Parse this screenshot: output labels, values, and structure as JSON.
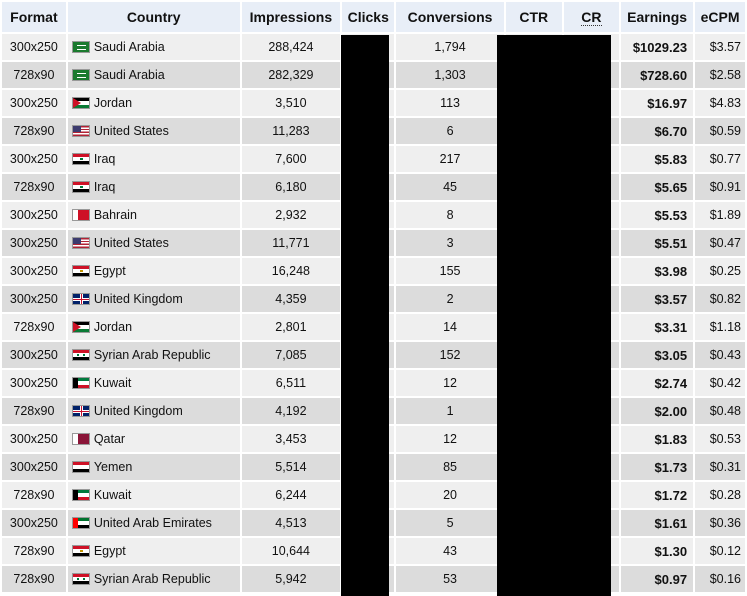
{
  "headers": {
    "format": "Format",
    "country": "Country",
    "impressions": "Impressions",
    "clicks": "Clicks",
    "conversions": "Conversions",
    "ctr": "CTR",
    "cr": "CR",
    "earnings": "Earnings",
    "ecpm": "eCPM"
  },
  "rows": [
    {
      "format": "300x250",
      "country": "Saudi Arabia",
      "flag": "saudi-arabia-flag-icon",
      "impressions": "288,424",
      "conversions": "1,794",
      "earnings": "$1029.23",
      "ecpm": "$3.57"
    },
    {
      "format": "728x90",
      "country": "Saudi Arabia",
      "flag": "saudi-arabia-flag-icon",
      "impressions": "282,329",
      "conversions": "1,303",
      "earnings": "$728.60",
      "ecpm": "$2.58"
    },
    {
      "format": "300x250",
      "country": "Jordan",
      "flag": "jordan-flag-icon",
      "impressions": "3,510",
      "conversions": "113",
      "earnings": "$16.97",
      "ecpm": "$4.83"
    },
    {
      "format": "728x90",
      "country": "United States",
      "flag": "united-states-flag-icon",
      "impressions": "11,283",
      "conversions": "6",
      "earnings": "$6.70",
      "ecpm": "$0.59"
    },
    {
      "format": "300x250",
      "country": "Iraq",
      "flag": "iraq-flag-icon",
      "impressions": "7,600",
      "conversions": "217",
      "earnings": "$5.83",
      "ecpm": "$0.77"
    },
    {
      "format": "728x90",
      "country": "Iraq",
      "flag": "iraq-flag-icon",
      "impressions": "6,180",
      "conversions": "45",
      "earnings": "$5.65",
      "ecpm": "$0.91"
    },
    {
      "format": "300x250",
      "country": "Bahrain",
      "flag": "bahrain-flag-icon",
      "impressions": "2,932",
      "conversions": "8",
      "earnings": "$5.53",
      "ecpm": "$1.89"
    },
    {
      "format": "300x250",
      "country": "United States",
      "flag": "united-states-flag-icon",
      "impressions": "11,771",
      "conversions": "3",
      "earnings": "$5.51",
      "ecpm": "$0.47"
    },
    {
      "format": "300x250",
      "country": "Egypt",
      "flag": "egypt-flag-icon",
      "impressions": "16,248",
      "conversions": "155",
      "earnings": "$3.98",
      "ecpm": "$0.25"
    },
    {
      "format": "300x250",
      "country": "United Kingdom",
      "flag": "united-kingdom-flag-icon",
      "impressions": "4,359",
      "conversions": "2",
      "earnings": "$3.57",
      "ecpm": "$0.82"
    },
    {
      "format": "728x90",
      "country": "Jordan",
      "flag": "jordan-flag-icon",
      "impressions": "2,801",
      "conversions": "14",
      "earnings": "$3.31",
      "ecpm": "$1.18"
    },
    {
      "format": "300x250",
      "country": "Syrian Arab Republic",
      "flag": "syria-flag-icon",
      "impressions": "7,085",
      "conversions": "152",
      "earnings": "$3.05",
      "ecpm": "$0.43"
    },
    {
      "format": "300x250",
      "country": "Kuwait",
      "flag": "kuwait-flag-icon",
      "impressions": "6,511",
      "conversions": "12",
      "earnings": "$2.74",
      "ecpm": "$0.42"
    },
    {
      "format": "728x90",
      "country": "United Kingdom",
      "flag": "united-kingdom-flag-icon",
      "impressions": "4,192",
      "conversions": "1",
      "earnings": "$2.00",
      "ecpm": "$0.48"
    },
    {
      "format": "300x250",
      "country": "Qatar",
      "flag": "qatar-flag-icon",
      "impressions": "3,453",
      "conversions": "12",
      "earnings": "$1.83",
      "ecpm": "$0.53"
    },
    {
      "format": "300x250",
      "country": "Yemen",
      "flag": "yemen-flag-icon",
      "impressions": "5,514",
      "conversions": "85",
      "earnings": "$1.73",
      "ecpm": "$0.31"
    },
    {
      "format": "728x90",
      "country": "Kuwait",
      "flag": "kuwait-flag-icon",
      "impressions": "6,244",
      "conversions": "20",
      "earnings": "$1.72",
      "ecpm": "$0.28"
    },
    {
      "format": "300x250",
      "country": "United Arab Emirates",
      "flag": "uae-flag-icon",
      "impressions": "4,513",
      "conversions": "5",
      "earnings": "$1.61",
      "ecpm": "$0.36"
    },
    {
      "format": "728x90",
      "country": "Egypt",
      "flag": "egypt-flag-icon",
      "impressions": "10,644",
      "conversions": "43",
      "earnings": "$1.30",
      "ecpm": "$0.12"
    },
    {
      "format": "728x90",
      "country": "Syrian Arab Republic",
      "flag": "syria-flag-icon",
      "impressions": "5,942",
      "conversions": "53",
      "earnings": "$0.97",
      "ecpm": "$0.16"
    }
  ]
}
